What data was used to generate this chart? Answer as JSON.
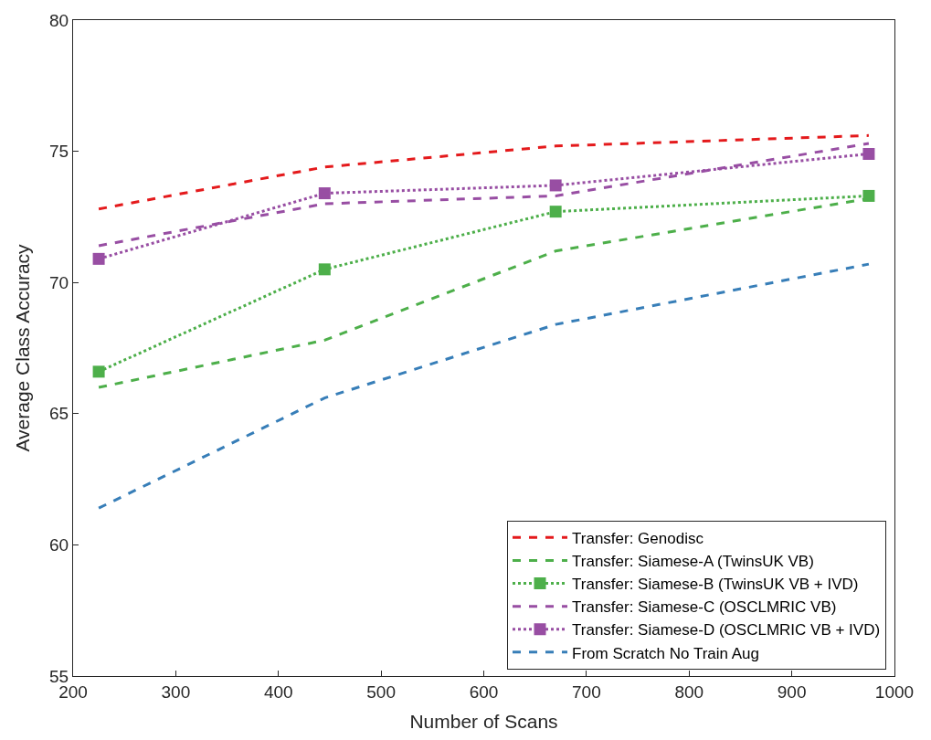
{
  "chart_data": {
    "type": "line",
    "xlabel": "Number of Scans",
    "ylabel": "Average Class Accuracy",
    "x": [
      225,
      445,
      670,
      975
    ],
    "xlim": [
      200,
      1000
    ],
    "xticks": [
      200,
      300,
      400,
      500,
      600,
      700,
      800,
      900,
      1000
    ],
    "ylim": [
      55,
      80
    ],
    "yticks": [
      55,
      60,
      65,
      70,
      75,
      80
    ],
    "legend": "bottom right",
    "series": [
      {
        "name": "Transfer: Genodisc",
        "color": "#e41a1c",
        "line_style": "dashed",
        "marker": "none",
        "values": [
          72.8,
          74.4,
          75.2,
          75.6
        ]
      },
      {
        "name": "Transfer: Siamese-A (TwinsUK VB)",
        "color": "#4daf4a",
        "line_style": "dashed",
        "marker": "none",
        "values": [
          66.0,
          67.8,
          71.2,
          73.2
        ]
      },
      {
        "name": "Transfer: Siamese-B (TwinsUK VB + IVD)",
        "color": "#4daf4a",
        "line_style": "dotted",
        "marker": "square",
        "values": [
          66.6,
          70.5,
          72.7,
          73.3
        ]
      },
      {
        "name": "Transfer: Siamese-C (OSCLMRIC VB)",
        "color": "#984ea3",
        "line_style": "dashed",
        "marker": "none",
        "values": [
          71.4,
          73.0,
          73.3,
          75.3
        ]
      },
      {
        "name": "Transfer: Siamese-D (OSCLMRIC VB + IVD)",
        "color": "#984ea3",
        "line_style": "dotted",
        "marker": "square",
        "values": [
          70.9,
          73.4,
          73.7,
          74.9
        ]
      },
      {
        "name": "From Scratch No Train Aug",
        "color": "#377eb8",
        "line_style": "dashed",
        "marker": "none",
        "values": [
          61.4,
          65.6,
          68.4,
          70.7
        ]
      }
    ]
  }
}
